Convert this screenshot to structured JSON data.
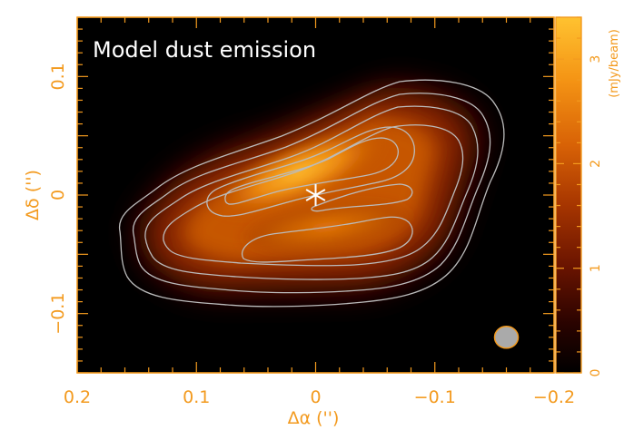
{
  "chart_data": {
    "type": "heatmap",
    "title": "Model dust emission",
    "xlabel": "Δα ('')",
    "ylabel": "Δδ ('')",
    "xlim": [
      0.2,
      -0.2
    ],
    "ylim": [
      -0.15,
      0.15
    ],
    "x_ticks": [
      0.2,
      0.1,
      0,
      -0.1,
      -0.2
    ],
    "x_tick_labels": [
      "0.2",
      "0.1",
      "0",
      "−0.1",
      "−0.2"
    ],
    "y_ticks": [
      0.1,
      0,
      -0.1
    ],
    "y_tick_labels": [
      "0.1",
      "0",
      "−0.1"
    ],
    "colorbar": {
      "label": "(mJy/beam)",
      "range": [
        0,
        3.4
      ],
      "ticks": [
        0,
        1,
        2,
        3
      ],
      "tick_labels": [
        "0",
        "1",
        "2",
        "3"
      ],
      "colormap": [
        "#000000",
        "#3a0600",
        "#7a1c00",
        "#b84400",
        "#e47808",
        "#ffb020",
        "#ffd040"
      ]
    },
    "markers": [
      {
        "symbol": "asterisk",
        "x": 0,
        "y": 0,
        "color": "#ffffff"
      }
    ],
    "beam": {
      "x": -0.16,
      "y": -0.12,
      "color": "#aaaaaa"
    },
    "contour_color": "#bbbbbb",
    "axis_color": "#f39a1e"
  }
}
